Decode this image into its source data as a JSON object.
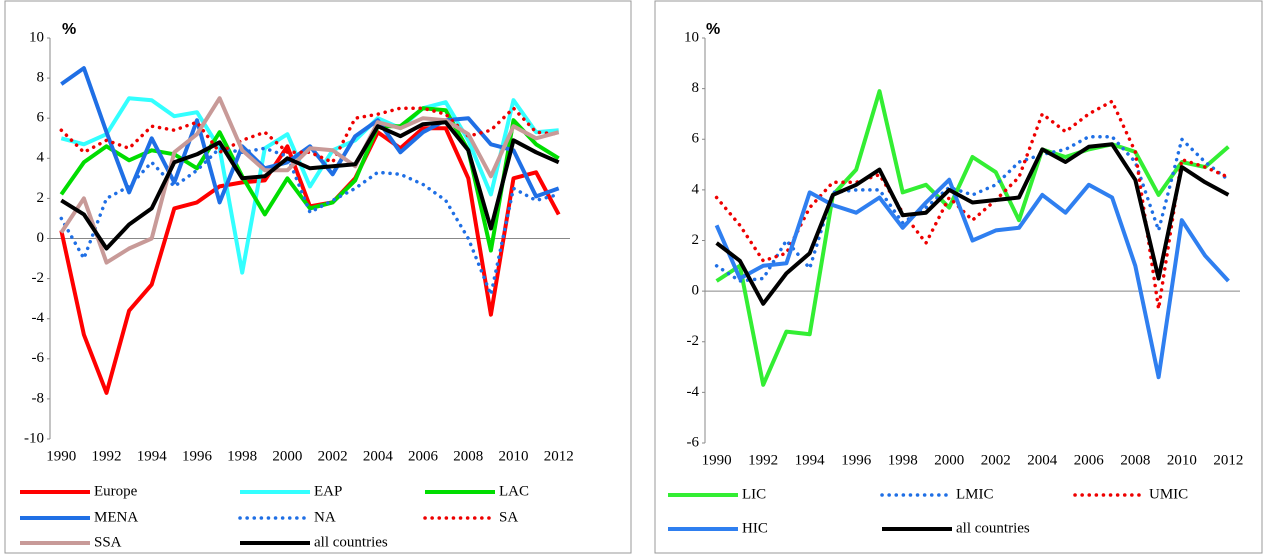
{
  "chart_data": [
    {
      "type": "line",
      "y_label": "%",
      "categories": [
        "1990",
        null,
        "1992",
        null,
        "1994",
        null,
        "1996",
        null,
        "1998",
        null,
        "2000",
        null,
        "2002",
        null,
        "2004",
        null,
        "2006",
        null,
        "2008",
        null,
        "2010",
        null,
        "2012"
      ],
      "ylim": [
        -10,
        10
      ],
      "yticks": [
        -10,
        -8,
        -6,
        -4,
        -2,
        0,
        2,
        4,
        6,
        8,
        10
      ],
      "series": [
        {
          "name": "Europe",
          "color": "#ff0000",
          "style": "solid",
          "values": [
            0.4,
            -4.8,
            -7.7,
            -3.6,
            -2.3,
            1.5,
            1.8,
            2.6,
            2.8,
            2.9,
            4.6,
            1.6,
            1.8,
            3.0,
            5.3,
            4.5,
            5.5,
            5.5,
            3.0,
            -3.8,
            3.0,
            3.3,
            1.2
          ]
        },
        {
          "name": "EAP",
          "color": "#33ffff",
          "style": "solid",
          "values": [
            5.0,
            4.7,
            5.2,
            7.0,
            6.9,
            6.1,
            6.3,
            4.5,
            -1.7,
            4.5,
            5.2,
            2.6,
            4.4,
            4.9,
            6.0,
            5.5,
            6.5,
            6.8,
            4.9,
            2.2,
            6.9,
            5.3,
            5.4
          ]
        },
        {
          "name": "LAC",
          "color": "#00dd00",
          "style": "solid",
          "values": [
            2.2,
            3.8,
            4.6,
            3.9,
            4.4,
            4.2,
            3.5,
            5.3,
            3.1,
            1.2,
            3.0,
            1.5,
            1.8,
            2.9,
            5.6,
            5.6,
            6.5,
            6.4,
            4.4,
            -0.6,
            5.9,
            4.7,
            4.0
          ]
        },
        {
          "name": "MENA",
          "color": "#1f6fe5",
          "style": "solid",
          "values": [
            7.7,
            8.5,
            5.3,
            2.3,
            5.0,
            2.8,
            5.9,
            1.8,
            4.6,
            3.5,
            3.8,
            4.6,
            3.2,
            5.1,
            5.9,
            4.3,
            5.3,
            5.9,
            6.0,
            4.7,
            4.4,
            2.1,
            2.5
          ]
        },
        {
          "name": "NA",
          "color": "#1f6fe5",
          "style": "dotted",
          "values": [
            1.0,
            -1.0,
            2.0,
            2.6,
            3.8,
            2.6,
            3.4,
            4.5,
            4.3,
            4.5,
            4.1,
            1.3,
            1.9,
            2.5,
            3.3,
            3.2,
            2.7,
            1.9,
            0.0,
            -2.8,
            2.5,
            1.9,
            2.2
          ]
        },
        {
          "name": "SA",
          "color": "#ee0000",
          "style": "dotted",
          "values": [
            5.4,
            4.3,
            4.9,
            4.5,
            5.6,
            5.4,
            5.8,
            4.3,
            4.9,
            5.3,
            4.3,
            4.3,
            3.8,
            6.0,
            6.2,
            6.5,
            6.5,
            6.2,
            5.1,
            5.4,
            6.5,
            5.3,
            5.2
          ]
        },
        {
          "name": "SSA",
          "color": "#c89a98",
          "style": "solid",
          "values": [
            0.3,
            2.0,
            -1.2,
            -0.5,
            0.0,
            4.3,
            5.2,
            7.0,
            4.4,
            3.4,
            3.4,
            4.5,
            4.4,
            3.6,
            5.8,
            5.5,
            6.0,
            5.9,
            5.2,
            3.1,
            5.6,
            5.0,
            5.3
          ]
        },
        {
          "name": "all countries",
          "color": "#000000",
          "style": "solid",
          "values": [
            1.9,
            1.2,
            -0.5,
            0.7,
            1.5,
            3.8,
            4.2,
            4.8,
            3.0,
            3.1,
            4.0,
            3.5,
            3.6,
            3.7,
            5.6,
            5.1,
            5.7,
            5.8,
            4.4,
            0.5,
            4.9,
            4.3,
            3.8
          ]
        }
      ]
    },
    {
      "type": "line",
      "y_label": "%",
      "categories": [
        "1990",
        null,
        "1992",
        null,
        "1994",
        null,
        "1996",
        null,
        "1998",
        null,
        "2000",
        null,
        "2002",
        null,
        "2004",
        null,
        "2006",
        null,
        "2008",
        null,
        "2010",
        null,
        "2012"
      ],
      "ylim": [
        -6,
        10
      ],
      "yticks": [
        -6,
        -4,
        -2,
        0,
        2,
        4,
        6,
        8,
        10
      ],
      "series": [
        {
          "name": "LIC",
          "color": "#33ee33",
          "style": "solid",
          "values": [
            0.4,
            1.0,
            -3.7,
            -1.6,
            -1.7,
            3.8,
            4.8,
            7.9,
            3.9,
            4.2,
            3.3,
            5.3,
            4.7,
            2.8,
            5.6,
            5.3,
            5.6,
            5.8,
            5.5,
            3.8,
            5.1,
            4.9,
            5.7
          ]
        },
        {
          "name": "LMIC",
          "color": "#1f6fe5",
          "style": "dotted",
          "values": [
            1.0,
            0.4,
            0.5,
            2.0,
            0.9,
            3.9,
            4.0,
            4.0,
            2.7,
            3.3,
            4.1,
            3.8,
            4.2,
            5.1,
            5.4,
            5.6,
            6.1,
            6.1,
            5.1,
            2.4,
            6.0,
            5.1,
            4.4
          ]
        },
        {
          "name": "UMIC",
          "color": "#ee0000",
          "style": "dotted",
          "values": [
            3.7,
            2.6,
            1.2,
            1.5,
            3.3,
            4.3,
            4.3,
            4.6,
            3.1,
            1.9,
            3.7,
            2.8,
            3.6,
            4.5,
            7.0,
            6.3,
            7.0,
            7.5,
            5.5,
            -0.7,
            5.2,
            4.9,
            4.5
          ]
        },
        {
          "name": "HIC",
          "color": "#2f7ff0",
          "style": "solid",
          "values": [
            2.6,
            0.5,
            1.0,
            1.1,
            3.9,
            3.4,
            3.1,
            3.7,
            2.5,
            3.5,
            4.4,
            2.0,
            2.4,
            2.5,
            3.8,
            3.1,
            4.2,
            3.7,
            1.0,
            -3.4,
            2.8,
            1.4,
            0.4
          ]
        },
        {
          "name": "all countries",
          "color": "#000000",
          "style": "solid",
          "values": [
            1.9,
            1.2,
            -0.5,
            0.7,
            1.5,
            3.8,
            4.2,
            4.8,
            3.0,
            3.1,
            4.0,
            3.5,
            3.6,
            3.7,
            5.6,
            5.1,
            5.7,
            5.8,
            4.4,
            0.5,
            4.9,
            4.3,
            3.8
          ]
        }
      ]
    }
  ]
}
